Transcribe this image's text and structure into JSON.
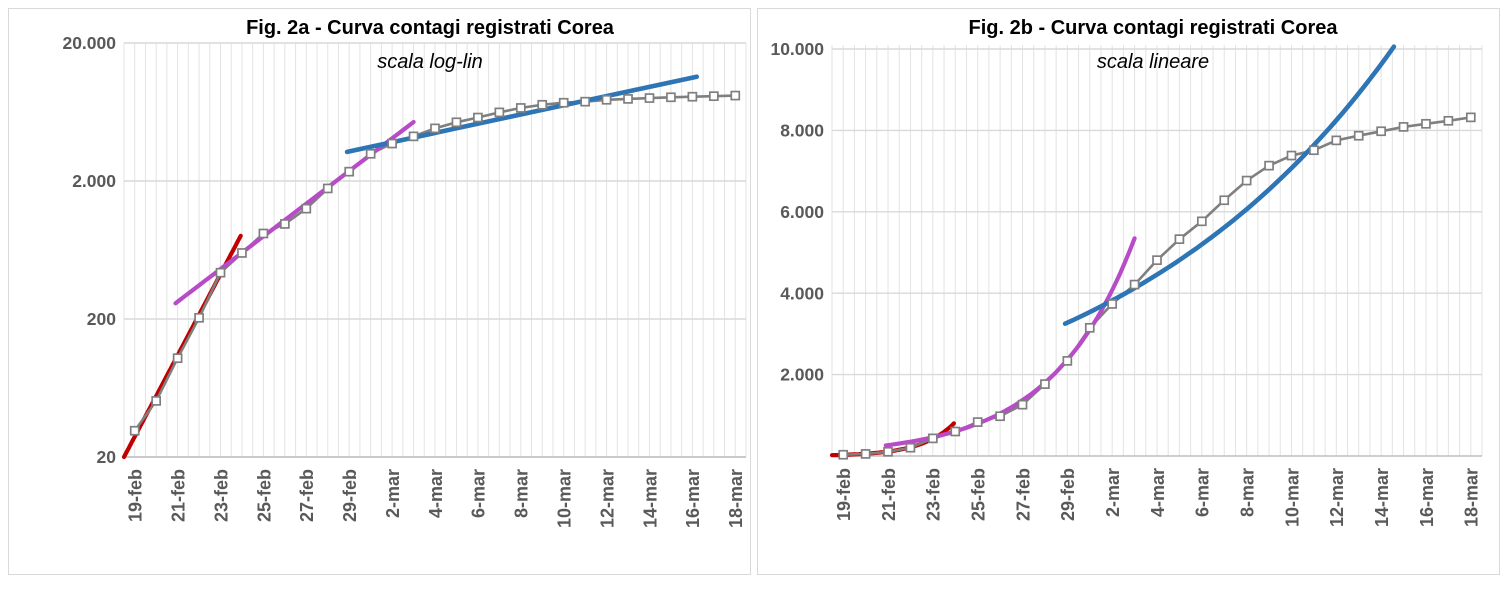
{
  "page": {
    "background": "#FFFFFF",
    "panel_border": "#D9D9D9"
  },
  "colors": {
    "data_line": "#7F7F7F",
    "marker_fill": "#FFFFFF",
    "marker_stroke": "#7F7F7F",
    "grid_major": "#D9D9D9",
    "grid_minor": "#E3E3E3",
    "axis_line": "#BFBFBF",
    "tick_label": "#595959",
    "title_color": "#000000",
    "trend_red": "#C00000",
    "trend_magenta": "#B84BC8",
    "trend_blue": "#2E75B6"
  },
  "chart_data": [
    {
      "type": "line",
      "title": "Fig. 2a - Curva contagi registrati Corea",
      "subtitle": "scala log-lin",
      "y_scale": "log",
      "grid": "on",
      "legend": "none",
      "y_axis": {
        "min": 20,
        "max": 20000,
        "tick_labels": [
          "20.000",
          "2.000",
          "200",
          "20"
        ],
        "tick_values": [
          20000,
          2000,
          200,
          20
        ]
      },
      "x": [
        "19-feb",
        "20-feb",
        "21-feb",
        "22-feb",
        "23-feb",
        "24-feb",
        "25-feb",
        "26-feb",
        "27-feb",
        "28-feb",
        "29-feb",
        "1-mar",
        "2-mar",
        "3-mar",
        "4-mar",
        "5-mar",
        "6-mar",
        "7-mar",
        "8-mar",
        "9-mar",
        "10-mar",
        "11-mar",
        "12-mar",
        "13-mar",
        "14-mar",
        "15-mar",
        "16-mar",
        "17-mar",
        "18-mar"
      ],
      "x_tick_labels": [
        "19-feb",
        "21-feb",
        "23-feb",
        "25-feb",
        "27-feb",
        "29-feb",
        "2-mar",
        "4-mar",
        "6-mar",
        "8-mar",
        "10-mar",
        "12-mar",
        "14-mar",
        "16-mar",
        "18-mar"
      ],
      "series": [
        {
          "name": "contagi-registrati",
          "marker": "square",
          "values": [
            31,
            51,
            104,
            204,
            433,
            602,
            833,
            977,
            1261,
            1766,
            2337,
            3150,
            3736,
            4212,
            4812,
            5328,
            5766,
            6284,
            6767,
            7134,
            7382,
            7513,
            7755,
            7869,
            7979,
            8086,
            8162,
            8236,
            8320
          ]
        }
      ],
      "trendlines": [
        {
          "name": "trend-red",
          "color_key": "trend_red",
          "day_start": -0.5,
          "day_end": 4.94,
          "value_start": 20,
          "value_end": 800
        },
        {
          "name": "trend-magenta",
          "color_key": "trend_magenta",
          "day_start": 1.9,
          "day_end": 13.0,
          "value_start": 260,
          "value_end": 5350
        },
        {
          "name": "trend-blue",
          "color_key": "trend_blue",
          "day_start": 9.9,
          "day_end": 26.2,
          "value_start": 3250,
          "value_end": 11400
        }
      ]
    },
    {
      "type": "line",
      "title": "Fig. 2b - Curva contagi registrati Corea",
      "subtitle": "scala lineare",
      "y_scale": "linear",
      "grid": "on",
      "legend": "none",
      "y_axis": {
        "min": 0,
        "max": 10000,
        "tick_labels": [
          "10.000",
          "8.000",
          "6.000",
          "4.000",
          "2.000"
        ],
        "tick_values": [
          10000,
          8000,
          6000,
          4000,
          2000
        ]
      },
      "x": [
        "19-feb",
        "20-feb",
        "21-feb",
        "22-feb",
        "23-feb",
        "24-feb",
        "25-feb",
        "26-feb",
        "27-feb",
        "28-feb",
        "29-feb",
        "1-mar",
        "2-mar",
        "3-mar",
        "4-mar",
        "5-mar",
        "6-mar",
        "7-mar",
        "8-mar",
        "9-mar",
        "10-mar",
        "11-mar",
        "12-mar",
        "13-mar",
        "14-mar",
        "15-mar",
        "16-mar",
        "17-mar",
        "18-mar"
      ],
      "x_tick_labels": [
        "19-feb",
        "21-feb",
        "23-feb",
        "25-feb",
        "27-feb",
        "29-feb",
        "2-mar",
        "4-mar",
        "6-mar",
        "8-mar",
        "10-mar",
        "12-mar",
        "14-mar",
        "16-mar",
        "18-mar"
      ],
      "series": [
        {
          "name": "contagi-registrati",
          "marker": "square",
          "values": [
            31,
            51,
            104,
            204,
            433,
            602,
            833,
            977,
            1261,
            1766,
            2337,
            3150,
            3736,
            4212,
            4812,
            5328,
            5766,
            6284,
            6767,
            7134,
            7382,
            7513,
            7755,
            7869,
            7979,
            8086,
            8162,
            8236,
            8320
          ]
        }
      ],
      "trendlines": [
        {
          "name": "trend-red",
          "color_key": "trend_red",
          "day_start": -0.5,
          "day_end": 4.94,
          "value_start": 20,
          "value_end": 800
        },
        {
          "name": "trend-magenta",
          "color_key": "trend_magenta",
          "day_start": 1.9,
          "day_end": 13.0,
          "value_start": 260,
          "value_end": 5350
        },
        {
          "name": "trend-blue",
          "color_key": "trend_blue",
          "day_start": 9.9,
          "day_end": 26.2,
          "value_start": 3250,
          "value_end": 11400
        }
      ]
    }
  ]
}
